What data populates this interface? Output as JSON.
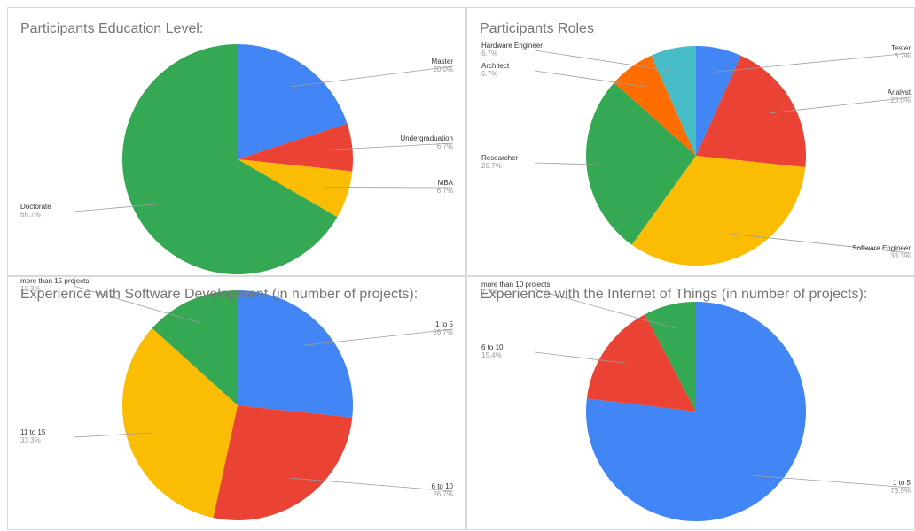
{
  "colors": {
    "blue": "#4285f4",
    "red": "#ea4335",
    "yellow": "#fbbc04",
    "green": "#34a853",
    "orange": "#ff6d01",
    "cyan": "#46bdc6"
  },
  "chart_data": [
    {
      "type": "pie",
      "title": "Participants Education Level:",
      "legend": "labels",
      "slices": [
        {
          "label": "Master",
          "value": 20.0,
          "pct_label": "20.0%",
          "color": "#4285f4"
        },
        {
          "label": "Undergraduation",
          "value": 6.7,
          "pct_label": "6.7%",
          "color": "#ea4335"
        },
        {
          "label": "MBA",
          "value": 6.7,
          "pct_label": "6.7%",
          "color": "#fbbc04"
        },
        {
          "label": "Doctorate",
          "value": 66.7,
          "pct_label": "66.7%",
          "color": "#34a853"
        }
      ]
    },
    {
      "type": "pie",
      "title": "Participants Roles",
      "legend": "labels",
      "slices": [
        {
          "label": "Tester",
          "value": 6.7,
          "pct_label": "6.7%",
          "color": "#4285f4"
        },
        {
          "label": "Analyst",
          "value": 20.0,
          "pct_label": "20.0%",
          "color": "#ea4335"
        },
        {
          "label": "Software Engineer",
          "value": 33.3,
          "pct_label": "33.3%",
          "color": "#fbbc04"
        },
        {
          "label": "Researcher",
          "value": 26.7,
          "pct_label": "26.7%",
          "color": "#34a853"
        },
        {
          "label": "Architect",
          "value": 6.7,
          "pct_label": "6.7%",
          "color": "#ff6d01"
        },
        {
          "label": "Hardware Engineer",
          "value": 6.7,
          "pct_label": "6.7%",
          "color": "#46bdc6"
        }
      ]
    },
    {
      "type": "pie",
      "title": "Experience with Software Development (in number of projects):",
      "legend": "labels",
      "slices": [
        {
          "label": "1 to 5",
          "value": 26.7,
          "pct_label": "26.7%",
          "color": "#4285f4"
        },
        {
          "label": "6 to 10",
          "value": 26.7,
          "pct_label": "26.7%",
          "color": "#ea4335"
        },
        {
          "label": "11 to 15",
          "value": 33.3,
          "pct_label": "33.3%",
          "color": "#fbbc04"
        },
        {
          "label": "more than 15 projects",
          "value": 13.3,
          "pct_label": "13.3%",
          "color": "#34a853"
        }
      ]
    },
    {
      "type": "pie",
      "title": "Experience with the Internet of Things (in number of projects):",
      "legend": "labels",
      "slices": [
        {
          "label": "1 to 5",
          "value": 76.9,
          "pct_label": "76.9%",
          "color": "#4285f4"
        },
        {
          "label": "6 to 10",
          "value": 15.4,
          "pct_label": "15.4%",
          "color": "#ea4335"
        },
        {
          "label": "more than 10 projects",
          "value": 7.7,
          "pct_label": "7.7%",
          "color": "#34a853"
        }
      ]
    }
  ]
}
